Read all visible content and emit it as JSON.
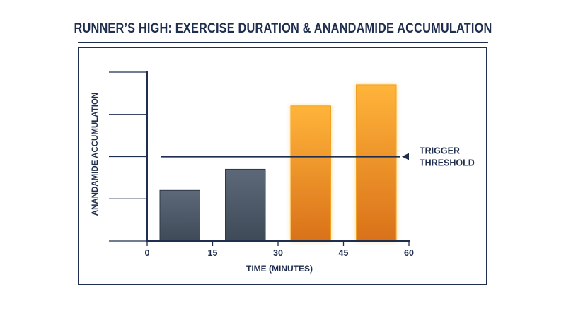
{
  "title": "RUNNER’S HIGH: EXERCISE DURATION & ANANDAMIDE ACCUMULATION",
  "colors": {
    "ink": "#1f2d4f",
    "bar_below": "#4f5b6b",
    "bar_above": "#f5a623"
  },
  "chart_data": {
    "type": "bar",
    "title": "RUNNER’S HIGH: EXERCISE DURATION & ANANDAMIDE ACCUMULATION",
    "xlabel": "TIME (MINUTES)",
    "ylabel": "ANANDAMIDE ACCUMULATION",
    "x_ticks": [
      "0",
      "15",
      "30",
      "45",
      "60"
    ],
    "xlim": [
      0,
      60
    ],
    "ylim": [
      0,
      4
    ],
    "y_tick_values": [
      1,
      2,
      3,
      4
    ],
    "y_tick_labels_shown": false,
    "categories": [
      "0–15",
      "15–30",
      "30–45",
      "45–60"
    ],
    "values": [
      1.2,
      1.7,
      3.2,
      3.7
    ],
    "threshold": {
      "value": 2,
      "label_lines": [
        "TRIGGER",
        "THRESHOLD"
      ]
    },
    "bar_styles": [
      "below",
      "below",
      "above",
      "above"
    ],
    "grid": false,
    "legend": "none"
  }
}
